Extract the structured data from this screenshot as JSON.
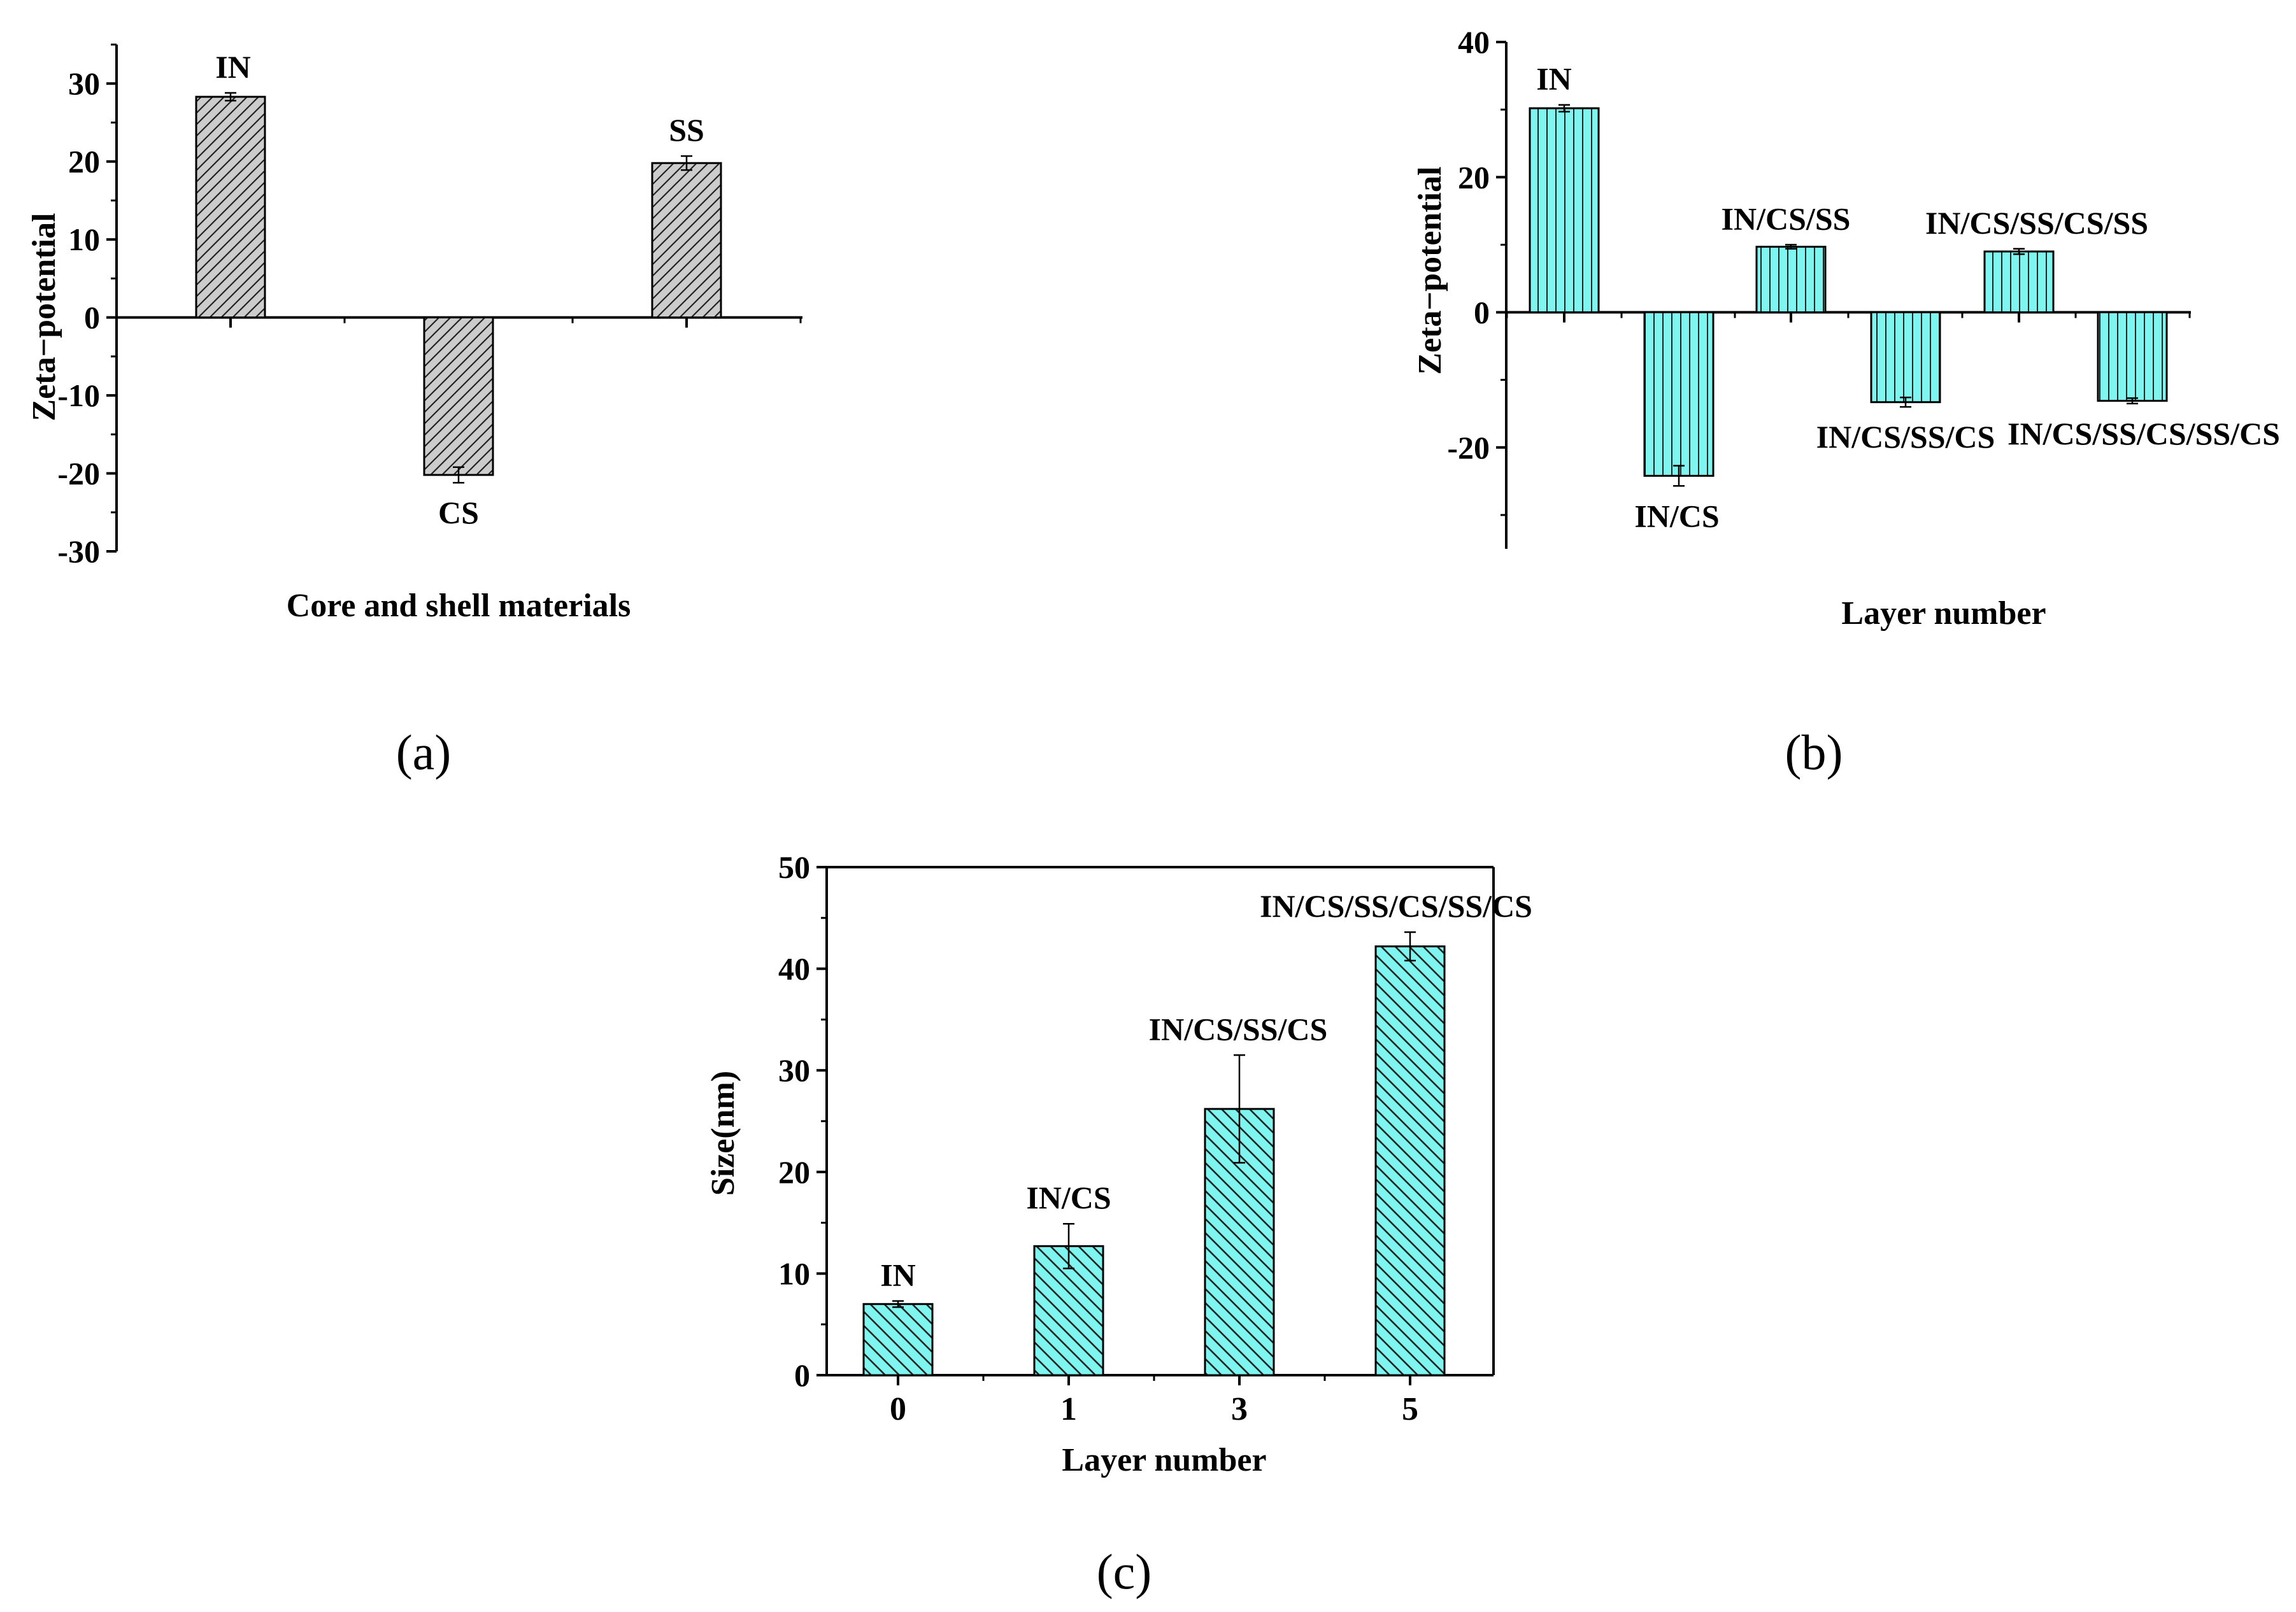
{
  "chart_data": [
    {
      "panel": "(a)",
      "type": "bar",
      "categories": [
        "IN",
        "CS",
        "SS"
      ],
      "values": [
        28.3,
        -20.2,
        19.8
      ],
      "errors": [
        0.5,
        1.0,
        0.9
      ],
      "bar_labels": [
        "IN",
        "CS",
        "SS"
      ],
      "ylabel": "Zeta−potential",
      "xlabel": "Core and shell materials",
      "ylim": [
        -30,
        35
      ],
      "yticks": [
        -30,
        -20,
        -10,
        0,
        10,
        20,
        30
      ],
      "fill": "#cccccc",
      "hatch": "forward-diagonal"
    },
    {
      "panel": "(b)",
      "type": "bar",
      "categories": [
        "IN",
        "IN/CS",
        "IN/CS/SS",
        "IN/CS/SS/CS",
        "IN/CS/SS/CS/SS",
        "IN/CS/SS/CS/SS/CS"
      ],
      "values": [
        30.2,
        -24.2,
        9.7,
        -13.3,
        9.0,
        -13.1
      ],
      "errors": [
        0.5,
        1.5,
        0.3,
        0.7,
        0.4,
        0.4
      ],
      "bar_labels": [
        "IN",
        "IN/CS",
        "IN/CS/SS",
        "IN/CS/SS/CS",
        "IN/CS/SS/CS/SS",
        "IN/CS/SS/CS/SS/CS"
      ],
      "ylabel": "Zeta−potential",
      "xlabel": "Layer number",
      "ylim": [
        -35,
        40
      ],
      "yticks": [
        -20,
        0,
        20,
        40
      ],
      "fill": "#7ff5f0",
      "hatch": "vertical"
    },
    {
      "panel": "(c)",
      "type": "bar",
      "categories": [
        "0",
        "1",
        "3",
        "5"
      ],
      "values": [
        7.0,
        12.7,
        26.2,
        42.2
      ],
      "errors": [
        0.3,
        2.2,
        5.3,
        1.4
      ],
      "bar_labels": [
        "IN",
        "IN/CS",
        "IN/CS/SS/CS",
        "IN/CS/SS/CS/SS/CS"
      ],
      "ylabel": "Size(nm)",
      "xlabel": "Layer number",
      "ylim": [
        0,
        50
      ],
      "yticks": [
        0,
        10,
        20,
        30,
        40,
        50
      ],
      "fill": "#7ff5f0",
      "hatch": "back-diagonal"
    }
  ]
}
